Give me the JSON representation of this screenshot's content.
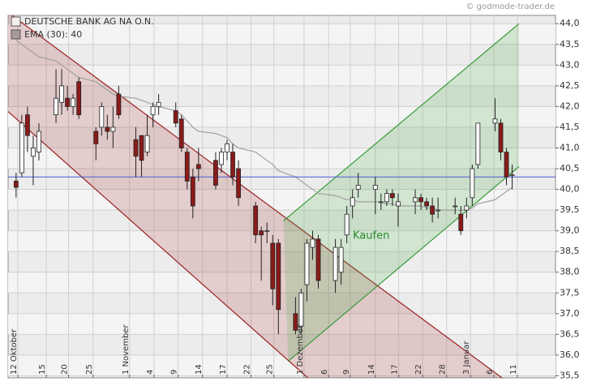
{
  "chart_data": {
    "type": "candlestick",
    "source": "© godmode-trader.de",
    "annotation": "Kaufen",
    "x": [
      0,
      1,
      2,
      3,
      4,
      7,
      8,
      9,
      10,
      11,
      14,
      15,
      16,
      17,
      18,
      21,
      22,
      23,
      24,
      25,
      28,
      29,
      30,
      31,
      32,
      35,
      36,
      37,
      38,
      39,
      42,
      43,
      44,
      45,
      46,
      49,
      50,
      51,
      52,
      53,
      56,
      57,
      58,
      59,
      60,
      63,
      64,
      65,
      66,
      67,
      70,
      71,
      72,
      73,
      74,
      77,
      78,
      79,
      80,
      81,
      84,
      85,
      86,
      87
    ],
    "series": [
      {
        "name": "DEUTSCHE BANK AG NA O.N.",
        "up_color": "#ffffff",
        "down_color": "#8b1a1a",
        "open": [
          40.2,
          40.4,
          41.8,
          40.8,
          40.9,
          41.8,
          42.1,
          42.2,
          42.0,
          42.6,
          41.4,
          41.5,
          41.5,
          41.4,
          42.3,
          41.2,
          41.3,
          40.9,
          41.8,
          42.0,
          41.9,
          41.7,
          40.9,
          40.3,
          40.6,
          40.7,
          40.6,
          40.9,
          40.9,
          40.5,
          39.6,
          39.0,
          39.0,
          38.7,
          38.7,
          37.0,
          36.7,
          37.7,
          38.6,
          38.8,
          37.8,
          38.0,
          38.9,
          39.6,
          40.0,
          40.0,
          39.7,
          39.7,
          39.9,
          39.6,
          39.7,
          39.8,
          39.7,
          39.6,
          39.5,
          39.6,
          39.4,
          39.5,
          39.8,
          40.6,
          41.6,
          41.6,
          40.9,
          40.35
        ],
        "high": [
          40.4,
          41.8,
          42.0,
          41.3,
          41.6,
          42.9,
          42.9,
          42.5,
          42.3,
          42.7,
          41.5,
          42.1,
          41.8,
          42.0,
          42.5,
          41.5,
          41.3,
          41.8,
          42.1,
          42.3,
          42.1,
          41.8,
          41.0,
          40.5,
          41.0,
          40.9,
          41.0,
          41.2,
          41.1,
          40.7,
          39.7,
          39.1,
          39.2,
          38.9,
          38.8,
          37.4,
          37.6,
          38.8,
          39.0,
          38.9,
          38.8,
          38.8,
          39.6,
          40.0,
          40.4,
          40.3,
          39.9,
          40.0,
          40.0,
          39.9,
          40.0,
          39.9,
          39.8,
          39.8,
          39.8,
          39.8,
          39.6,
          39.8,
          40.6,
          41.6,
          42.2,
          41.7,
          41.0,
          40.6
        ],
        "low": [
          39.8,
          40.3,
          40.9,
          40.1,
          40.7,
          41.6,
          41.8,
          41.9,
          41.8,
          41.7,
          40.7,
          41.3,
          41.2,
          41.0,
          41.7,
          40.3,
          40.3,
          40.8,
          41.5,
          41.8,
          41.5,
          40.9,
          40.0,
          39.3,
          40.2,
          40.0,
          40.4,
          40.7,
          40.1,
          39.6,
          38.7,
          37.8,
          38.7,
          37.2,
          36.5,
          36.5,
          36.5,
          37.3,
          38.3,
          37.6,
          37.5,
          37.7,
          38.7,
          39.3,
          39.8,
          39.4,
          39.5,
          39.6,
          39.6,
          39.1,
          39.4,
          39.5,
          39.5,
          39.2,
          39.3,
          39.4,
          38.9,
          39.3,
          39.6,
          40.5,
          41.4,
          40.7,
          40.1,
          40.0
        ],
        "close": [
          40.05,
          41.6,
          41.3,
          41.0,
          41.4,
          42.2,
          42.5,
          42.0,
          42.2,
          41.8,
          41.1,
          42.0,
          41.4,
          41.5,
          41.8,
          40.8,
          40.7,
          41.3,
          42.0,
          42.1,
          41.6,
          41.0,
          40.2,
          39.6,
          40.5,
          40.1,
          40.9,
          41.1,
          40.3,
          39.8,
          38.9,
          38.9,
          39.0,
          37.6,
          37.1,
          36.6,
          37.5,
          38.7,
          38.8,
          37.8,
          38.6,
          38.6,
          39.4,
          39.8,
          40.1,
          40.1,
          39.7,
          39.9,
          39.8,
          39.7,
          39.8,
          39.7,
          39.6,
          39.4,
          39.5,
          39.6,
          39.0,
          39.6,
          40.5,
          41.6,
          41.7,
          40.9,
          40.3,
          40.35
        ]
      },
      {
        "name": "EMA (30): 40",
        "color": "#a0a0a0",
        "legend_color": "#a89a9a",
        "values": [
          43.6,
          43.5,
          43.4,
          43.3,
          43.2,
          43.1,
          43.0,
          42.9,
          42.8,
          42.7,
          42.6,
          42.5,
          42.4,
          42.3,
          42.25,
          42.2,
          42.15,
          42.1,
          42.05,
          42.0,
          41.9,
          41.8,
          41.65,
          41.5,
          41.4,
          41.35,
          41.3,
          41.25,
          41.1,
          41.0,
          40.9,
          40.8,
          40.7,
          40.6,
          40.45,
          40.3,
          40.2,
          40.1,
          40.0,
          39.9,
          39.85,
          39.8,
          39.75,
          39.75,
          39.7,
          39.7,
          39.7,
          39.65,
          39.65,
          39.6,
          39.6,
          39.6,
          39.55,
          39.55,
          39.5,
          39.5,
          39.5,
          39.5,
          39.55,
          39.65,
          39.75,
          39.85,
          39.95,
          40.05
        ]
      }
    ],
    "channels": [
      {
        "color": "#9b2020",
        "fill": "rgba(175,70,70,0.22)",
        "upper": {
          "x": [
            -1.4,
            86.1
          ],
          "values": [
            44.27,
            35.36
          ]
        },
        "lower": {
          "x": [
            -1.4,
            51.9
          ],
          "values": [
            41.88,
            35.36
          ]
        }
      },
      {
        "color": "#3a9a3a",
        "fill": "rgba(70,170,70,0.2)",
        "upper": {
          "x": [
            46.9,
            88.2
          ],
          "values": [
            39.24,
            44.0
          ]
        },
        "lower": {
          "x": [
            47.7,
            88.2
          ],
          "values": [
            35.85,
            40.55
          ]
        }
      }
    ],
    "reference_line": {
      "value": 40.3,
      "color": "#4a5ad0"
    },
    "xlim": [
      -1.4,
      94.6
    ],
    "xticks": [
      {
        "value": 0.3,
        "label": "12 Oktober"
      },
      {
        "value": 5.3,
        "label": "15"
      },
      {
        "value": 9.2,
        "label": "20"
      },
      {
        "value": 13.5,
        "label": "25"
      },
      {
        "value": 19.9,
        "label": "1 November"
      },
      {
        "value": 24.2,
        "label": "4"
      },
      {
        "value": 28.4,
        "label": "9"
      },
      {
        "value": 32.7,
        "label": "14"
      },
      {
        "value": 37.0,
        "label": "17"
      },
      {
        "value": 41.2,
        "label": "22"
      },
      {
        "value": 45.2,
        "label": "25"
      },
      {
        "value": 50.5,
        "label": "1 Dezember"
      },
      {
        "value": 54.8,
        "label": "6"
      },
      {
        "value": 58.6,
        "label": "9"
      },
      {
        "value": 63.0,
        "label": "14"
      },
      {
        "value": 67.1,
        "label": "17"
      },
      {
        "value": 71.3,
        "label": "22"
      },
      {
        "value": 75.5,
        "label": "28"
      },
      {
        "value": 79.7,
        "label": "3 Januar"
      },
      {
        "value": 83.8,
        "label": "6"
      },
      {
        "value": 87.9,
        "label": "11"
      }
    ],
    "ylim": [
      35.45,
      44.2
    ],
    "yticks": [
      {
        "value": 35.5,
        "label": "35,5"
      },
      {
        "value": 36,
        "label": "36,0"
      },
      {
        "value": 36.5,
        "label": "36,5"
      },
      {
        "value": 37,
        "label": "37,0"
      },
      {
        "value": 37.5,
        "label": "37,5"
      },
      {
        "value": 38,
        "label": "38,0"
      },
      {
        "value": 38.5,
        "label": "38,5"
      },
      {
        "value": 39,
        "label": "39,0"
      },
      {
        "value": 39.5,
        "label": "39,5"
      },
      {
        "value": 40,
        "label": "40,0"
      },
      {
        "value": 40.5,
        "label": "40,5"
      },
      {
        "value": 41,
        "label": "41,0"
      },
      {
        "value": 41.5,
        "label": "41,5"
      },
      {
        "value": 42,
        "label": "42,0"
      },
      {
        "value": 42.5,
        "label": "42,5"
      },
      {
        "value": 43,
        "label": "43,0"
      },
      {
        "value": 43.5,
        "label": "43,5"
      },
      {
        "value": 44,
        "label": "44,0"
      }
    ],
    "grid": true
  }
}
